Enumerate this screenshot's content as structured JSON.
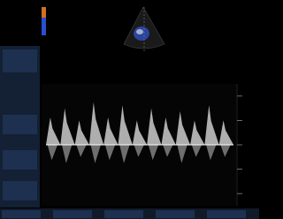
{
  "doppler": {
    "peaks": [
      0.45,
      0.6,
      0.4,
      0.7,
      0.45,
      0.65,
      0.4,
      0.6,
      0.45,
      0.55,
      0.4,
      0.65,
      0.4
    ],
    "troughs": [
      0.25,
      0.3,
      0.2,
      0.3,
      0.25,
      0.3,
      0.2,
      0.25,
      0.2,
      0.3,
      0.2,
      0.25,
      0.2
    ],
    "ylim": [
      -1,
      1
    ],
    "yticks": [
      -0.8,
      -0.4,
      0,
      0.4,
      0.8
    ],
    "color": "#d8d8d8"
  }
}
